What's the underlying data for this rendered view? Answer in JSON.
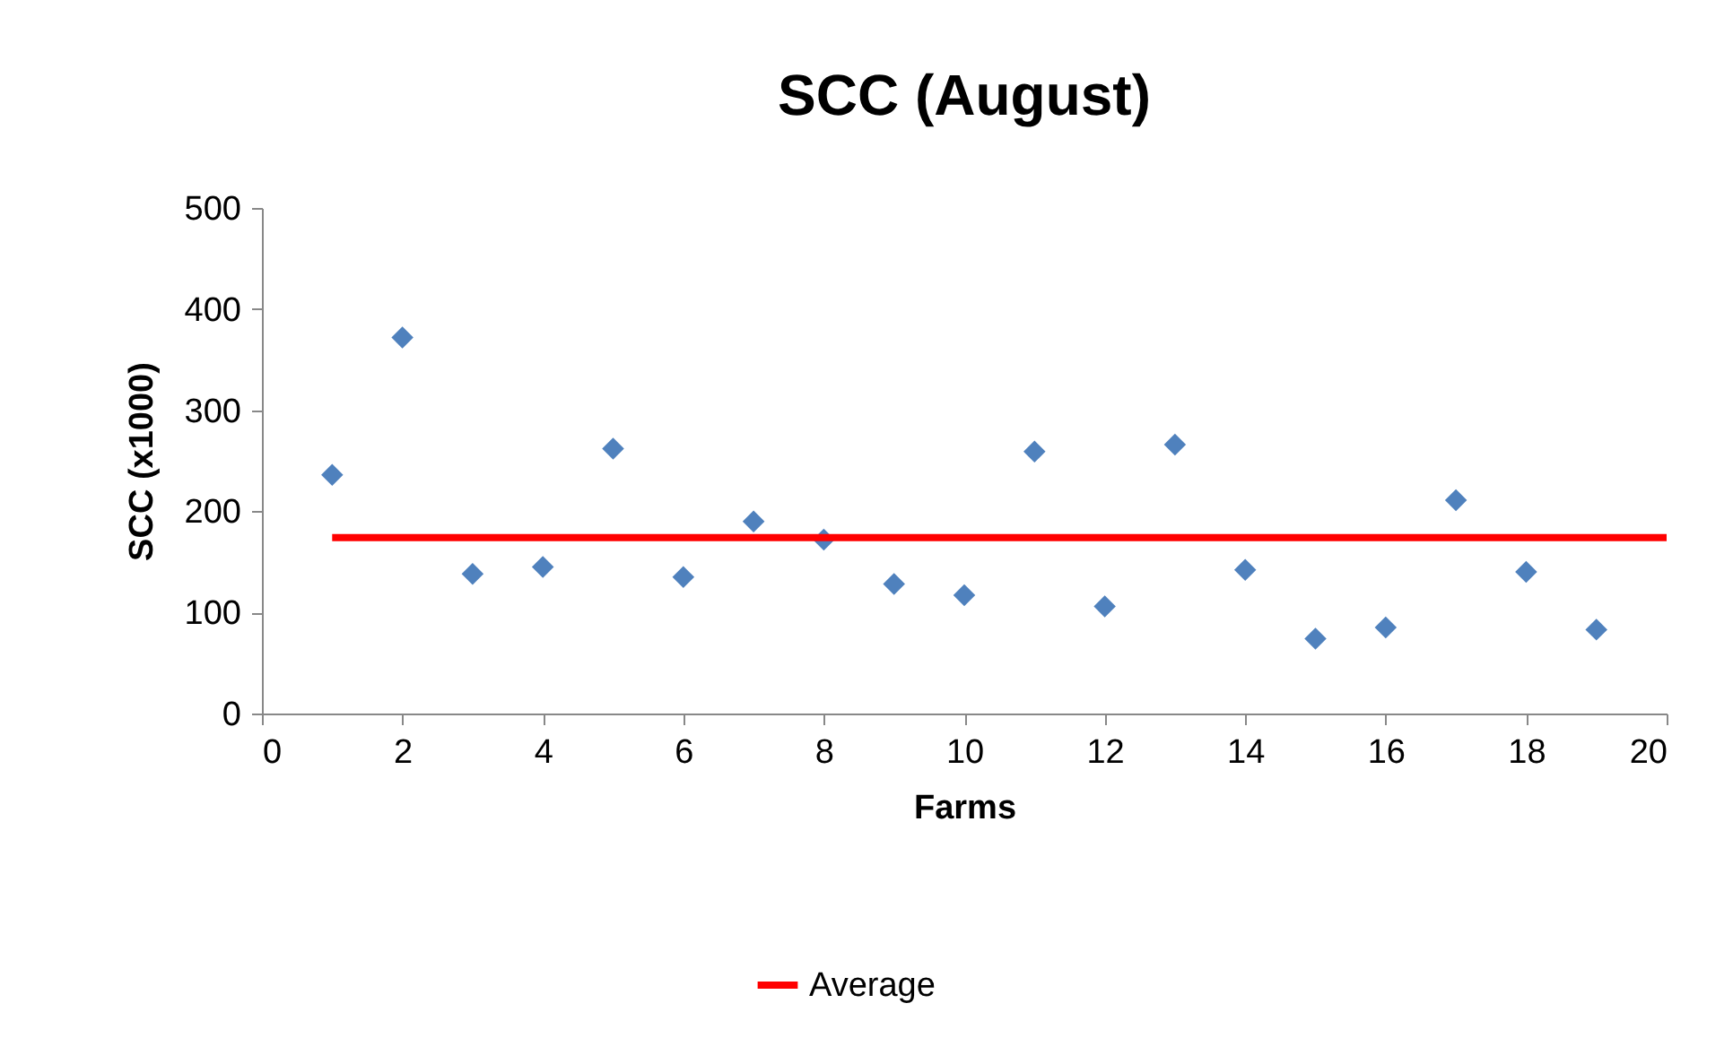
{
  "chart_data": {
    "type": "scatter",
    "title": "SCC (August)",
    "xlabel": "Farms",
    "ylabel": "SCC (x1000)",
    "xlim": [
      0,
      20
    ],
    "xticks": [
      0,
      2,
      4,
      6,
      8,
      10,
      12,
      14,
      16,
      18,
      20
    ],
    "ylim": [
      0,
      500
    ],
    "yticks": [
      0,
      100,
      200,
      300,
      400,
      500
    ],
    "grid": false,
    "legend": "bottom",
    "marker": "diamond",
    "series": [
      {
        "color": "#4f81bd",
        "x": [
          1,
          2,
          3,
          4,
          5,
          6,
          7,
          8,
          9,
          10,
          11,
          12,
          13,
          14,
          15,
          16,
          17,
          18,
          19
        ],
        "values": [
          236,
          372,
          138,
          145,
          262,
          135,
          190,
          172,
          128,
          117,
          259,
          106,
          266,
          142,
          74,
          85,
          211,
          140,
          83
        ]
      },
      {
        "type": "line",
        "name": "Average",
        "color": "#ff0000",
        "marker": "none",
        "x": [
          1,
          20
        ],
        "values": [
          174,
          174
        ]
      }
    ]
  }
}
